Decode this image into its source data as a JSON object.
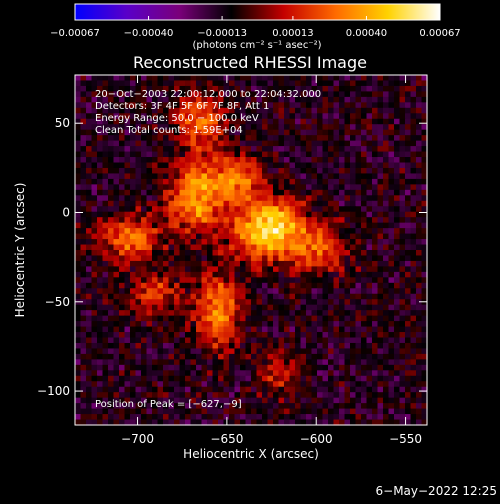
{
  "chart_data": {
    "type": "heatmap",
    "title": "Reconstructed RHESSI Image",
    "xlabel": "Heliocentric X (arcsec)",
    "ylabel": "Heliocentric Y (arcsec)",
    "xlim": [
      -735,
      -538
    ],
    "ylim": [
      -119,
      77
    ],
    "x_ticks": [
      -700,
      -650,
      -600,
      -550
    ],
    "x_tick_labels": [
      "−700",
      "−650",
      "−600",
      "−550"
    ],
    "y_ticks": [
      50,
      0,
      -50,
      -100
    ],
    "y_tick_labels": [
      "50",
      "0",
      "−50",
      "−100"
    ],
    "colorbar": {
      "min": -0.00067,
      "max": 0.00067,
      "ticks": [
        -0.00067,
        -0.0004,
        -0.00013,
        0.00013,
        0.0004,
        0.00067
      ],
      "tick_labels": [
        "−0.00067",
        "−0.00040",
        "−0.00013",
        "0.00013",
        "0.00040",
        "0.00067"
      ],
      "colors": [
        "#0000ff",
        "#5a00c8",
        "#7a007a",
        "#000000",
        "#c40000",
        "#ff6a00",
        "#ffd200",
        "#ffffff"
      ],
      "unit_label": "(photons cm⁻² s⁻¹ asec⁻²)"
    },
    "annotations": [
      "20−Oct−2003 22:00:12.000 to 22:04:32.000",
      "Detectors: 3F 4F 5F 6F 7F 8F, Att 1",
      "Energy Range: 50.0 − 100.0 keV",
      "Clean     Total counts: 1.59E+04"
    ],
    "peak_label": "Position of Peak = [−627,−9]",
    "peak": [
      -627,
      -9
    ],
    "grid": false,
    "sources": [
      {
        "x": -627,
        "y": -9,
        "amplitude": 0.00067,
        "sigma_x": 14,
        "sigma_y": 12
      },
      {
        "x": -668,
        "y": 8,
        "amplitude": 0.0005,
        "sigma_x": 11,
        "sigma_y": 13
      },
      {
        "x": -705,
        "y": -14,
        "amplitude": 0.00042,
        "sigma_x": 12,
        "sigma_y": 9
      },
      {
        "x": -655,
        "y": -55,
        "amplitude": 0.00045,
        "sigma_x": 9,
        "sigma_y": 15
      },
      {
        "x": -665,
        "y": 50,
        "amplitude": 0.0004,
        "sigma_x": 9,
        "sigma_y": 12
      },
      {
        "x": -598,
        "y": -20,
        "amplitude": 0.00032,
        "sigma_x": 12,
        "sigma_y": 10
      },
      {
        "x": -690,
        "y": -45,
        "amplitude": 0.0003,
        "sigma_x": 10,
        "sigma_y": 8
      },
      {
        "x": -620,
        "y": -90,
        "amplitude": 0.00025,
        "sigma_x": 8,
        "sigma_y": 10
      },
      {
        "x": -645,
        "y": 20,
        "amplitude": 0.0004,
        "sigma_x": 10,
        "sigma_y": 9
      }
    ]
  },
  "footer": {
    "date": "6−May−2022 12:25"
  }
}
